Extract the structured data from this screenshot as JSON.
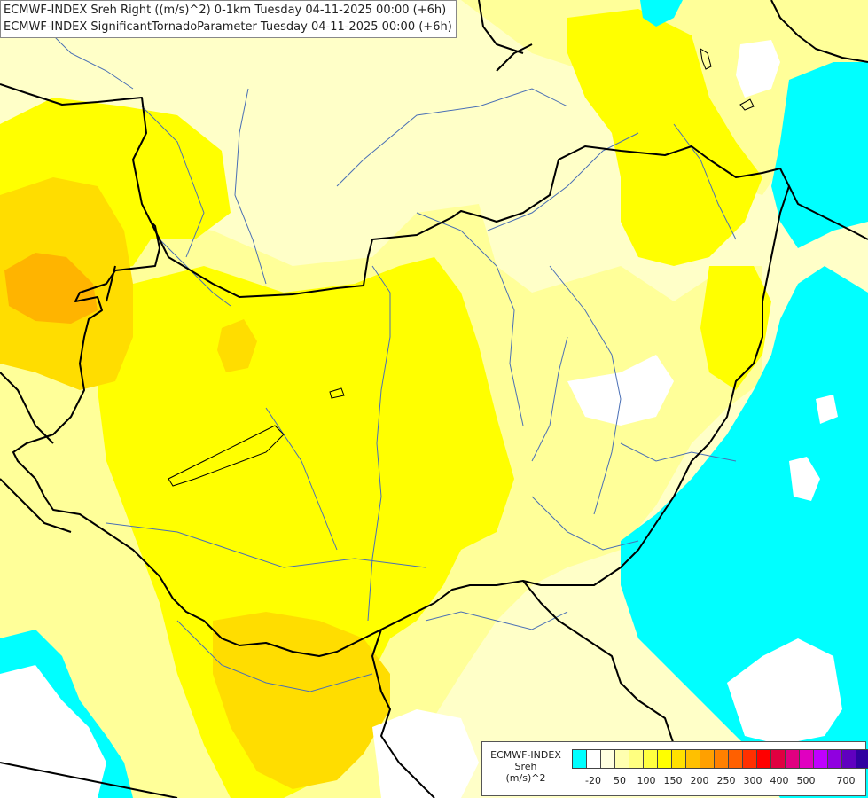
{
  "title": {
    "line1": "ECMWF-INDEX Sreh Right ((m/s)^2) 0-1km Tuesday 04-11-2025 00:00 (+6h)",
    "line2": "ECMWF-INDEX SignificantTornadoParameter Tuesday 04-11-2025 00:00 (+6h)"
  },
  "legend": {
    "source": "ECMWF-INDEX",
    "parameter": "Sreh",
    "unit": "(m/s)^2",
    "colors": [
      "#00ffff",
      "#ffffff",
      "#ffffe0",
      "#ffffb0",
      "#ffff80",
      "#ffff40",
      "#ffff00",
      "#ffe000",
      "#ffc000",
      "#ffa000",
      "#ff8000",
      "#ff6000",
      "#ff3000",
      "#ff0000",
      "#e00040",
      "#e00080",
      "#e000c0",
      "#c000ff",
      "#9000e0",
      "#6000c0",
      "#3000a0",
      "#000080"
    ],
    "ticks": [
      "-20",
      "50",
      "100",
      "150",
      "200",
      "250",
      "300",
      "400",
      "500",
      "700"
    ]
  },
  "map_colors": {
    "pale": "#ffffc8",
    "light": "#ffff99",
    "yellow": "#ffff00",
    "gold": "#ffdd00",
    "orange": "#ffb400",
    "cyan": "#00ffff",
    "white": "#ffffff",
    "border": "#000000",
    "river": "#4a6fb5"
  }
}
